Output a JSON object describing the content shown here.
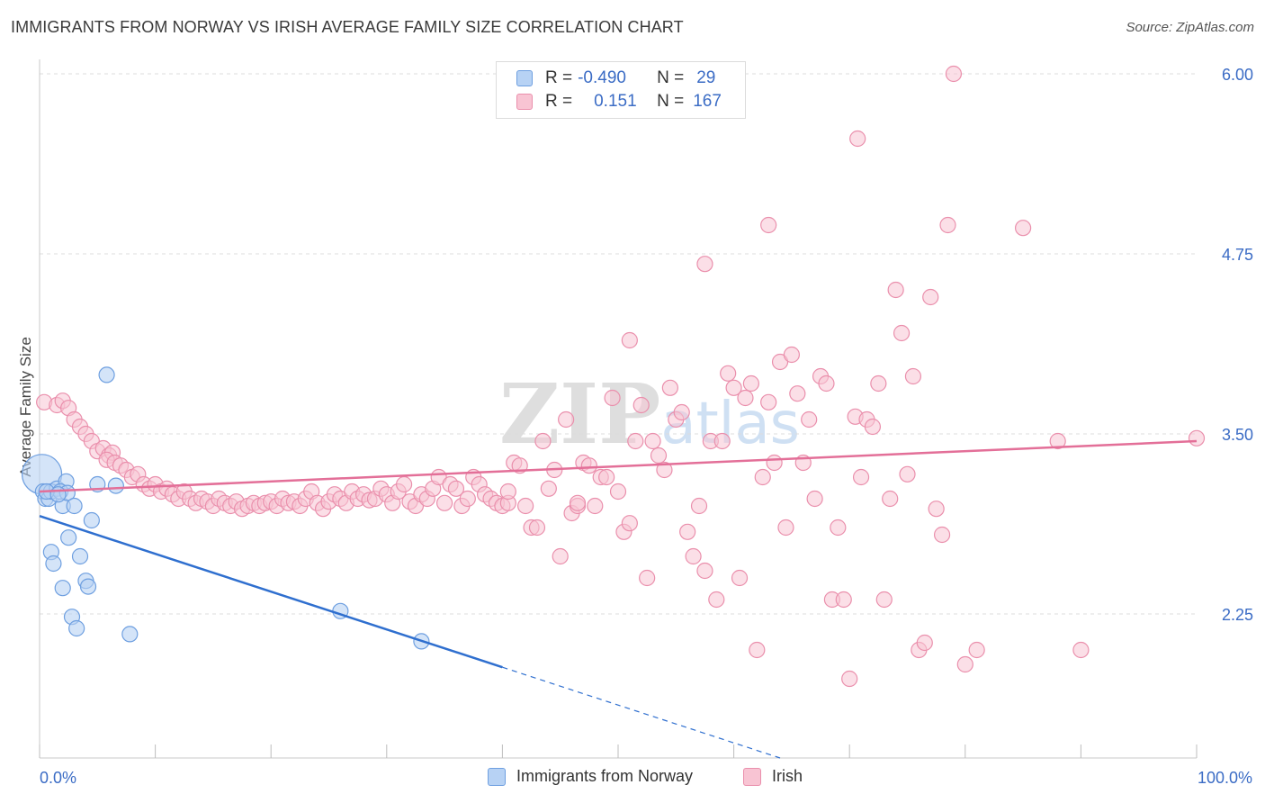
{
  "title": "IMMIGRANTS FROM NORWAY VS IRISH AVERAGE FAMILY SIZE CORRELATION CHART",
  "source": "Source: ZipAtlas.com",
  "watermark": "ZIPatlas",
  "legend_top": {
    "rows": [
      {
        "r_label": "R =",
        "r_value": "-0.490",
        "n_label": "N =",
        "n_value": "29"
      },
      {
        "r_label": "R =",
        "r_value": "0.151",
        "n_label": "N =",
        "n_value": "167"
      }
    ]
  },
  "colors": {
    "norway_fill": "#b7d2f4",
    "norway_stroke": "#6e9fe0",
    "norway_line": "#2f6fcf",
    "irish_fill": "#f8c4d3",
    "irish_stroke": "#ea8fac",
    "irish_line": "#e36f98",
    "axis_text": "#3b6cc5",
    "grid": "#dcdcdc"
  },
  "chart_data": {
    "type": "scatter",
    "title": "IMMIGRANTS FROM NORWAY VS IRISH AVERAGE FAMILY SIZE CORRELATION CHART",
    "ylabel": "Average Family Size",
    "xlabel": "",
    "xlim": [
      0,
      100
    ],
    "ylim": [
      1.25,
      6.1
    ],
    "x_tick_labels": [
      "0.0%",
      "100.0%"
    ],
    "y_ticks": [
      2.25,
      3.5,
      4.75,
      6.0
    ],
    "y_tick_labels": [
      "2.25",
      "3.50",
      "4.75",
      "6.00"
    ],
    "series": [
      {
        "name": "Immigrants from Norway",
        "r": -0.49,
        "n": 29,
        "trend": {
          "x0": 0,
          "y0": 2.93,
          "x_solid_end": 40,
          "x1": 64,
          "y1": 1.25
        },
        "points": [
          [
            0.2,
            3.22,
            "L"
          ],
          [
            0.3,
            3.1
          ],
          [
            0.5,
            3.05
          ],
          [
            0.8,
            3.05
          ],
          [
            1.0,
            3.1
          ],
          [
            1.5,
            3.12
          ],
          [
            2.0,
            3.0
          ],
          [
            2.3,
            3.17
          ],
          [
            1.8,
            3.1
          ],
          [
            2.4,
            3.09
          ],
          [
            3.0,
            3.0
          ],
          [
            4.5,
            2.9
          ],
          [
            2.5,
            2.78
          ],
          [
            1.0,
            2.68
          ],
          [
            3.5,
            2.65
          ],
          [
            1.2,
            2.6
          ],
          [
            4.0,
            2.48
          ],
          [
            4.2,
            2.44
          ],
          [
            2.0,
            2.43
          ],
          [
            2.8,
            2.23
          ],
          [
            3.2,
            2.15
          ],
          [
            7.8,
            2.11
          ],
          [
            5.8,
            3.91
          ],
          [
            5.0,
            3.15
          ],
          [
            6.6,
            3.14
          ],
          [
            26.0,
            2.27
          ],
          [
            33.0,
            2.06
          ],
          [
            0.6,
            3.1
          ],
          [
            1.6,
            3.08
          ]
        ]
      },
      {
        "name": "Irish",
        "r": 0.151,
        "n": 167,
        "trend": {
          "x0": 0,
          "y0": 3.1,
          "x1": 100,
          "y1": 3.45
        },
        "points": [
          [
            0.4,
            3.72
          ],
          [
            1.5,
            3.7
          ],
          [
            2.0,
            3.73
          ],
          [
            2.5,
            3.68
          ],
          [
            3.0,
            3.6
          ],
          [
            3.5,
            3.55
          ],
          [
            4.0,
            3.5
          ],
          [
            4.5,
            3.45
          ],
          [
            5.0,
            3.38
          ],
          [
            5.5,
            3.4
          ],
          [
            6.0,
            3.35
          ],
          [
            6.3,
            3.37
          ],
          [
            5.8,
            3.32
          ],
          [
            6.5,
            3.3
          ],
          [
            7.0,
            3.28
          ],
          [
            7.5,
            3.25
          ],
          [
            8.0,
            3.2
          ],
          [
            8.5,
            3.22
          ],
          [
            9.0,
            3.15
          ],
          [
            9.5,
            3.12
          ],
          [
            10.0,
            3.15
          ],
          [
            10.5,
            3.1
          ],
          [
            11.0,
            3.12
          ],
          [
            11.5,
            3.08
          ],
          [
            12.0,
            3.05
          ],
          [
            12.5,
            3.1
          ],
          [
            13.0,
            3.05
          ],
          [
            13.5,
            3.02
          ],
          [
            14.0,
            3.05
          ],
          [
            14.5,
            3.03
          ],
          [
            15.0,
            3.0
          ],
          [
            15.5,
            3.05
          ],
          [
            16.0,
            3.02
          ],
          [
            16.5,
            3.0
          ],
          [
            17.0,
            3.03
          ],
          [
            17.5,
            2.98
          ],
          [
            18.0,
            3.0
          ],
          [
            18.5,
            3.02
          ],
          [
            19.0,
            3.0
          ],
          [
            19.5,
            3.02
          ],
          [
            20.0,
            3.03
          ],
          [
            20.5,
            3.0
          ],
          [
            21.0,
            3.05
          ],
          [
            21.5,
            3.02
          ],
          [
            22.0,
            3.03
          ],
          [
            22.5,
            3.0
          ],
          [
            23.0,
            3.05
          ],
          [
            23.5,
            3.1
          ],
          [
            24.0,
            3.02
          ],
          [
            24.5,
            2.98
          ],
          [
            25.0,
            3.03
          ],
          [
            25.5,
            3.08
          ],
          [
            26.0,
            3.05
          ],
          [
            26.5,
            3.02
          ],
          [
            27.0,
            3.1
          ],
          [
            27.5,
            3.05
          ],
          [
            28.0,
            3.08
          ],
          [
            28.5,
            3.04
          ],
          [
            29.0,
            3.05
          ],
          [
            29.5,
            3.12
          ],
          [
            30.0,
            3.08
          ],
          [
            30.5,
            3.02
          ],
          [
            31.0,
            3.1
          ],
          [
            31.5,
            3.15
          ],
          [
            32.0,
            3.03
          ],
          [
            32.5,
            3.0
          ],
          [
            33.0,
            3.08
          ],
          [
            33.5,
            3.05
          ],
          [
            34.0,
            3.12
          ],
          [
            34.5,
            3.2
          ],
          [
            35.0,
            3.02
          ],
          [
            35.5,
            3.15
          ],
          [
            36.0,
            3.12
          ],
          [
            36.5,
            3.0
          ],
          [
            37.0,
            3.05
          ],
          [
            37.5,
            3.2
          ],
          [
            38.0,
            3.15
          ],
          [
            38.5,
            3.08
          ],
          [
            39.0,
            3.05
          ],
          [
            39.5,
            3.02
          ],
          [
            40.0,
            3.0
          ],
          [
            40.5,
            3.02
          ],
          [
            41.0,
            3.3
          ],
          [
            41.5,
            3.28
          ],
          [
            42.0,
            3.0
          ],
          [
            42.5,
            2.85
          ],
          [
            43.0,
            2.85
          ],
          [
            43.5,
            3.45
          ],
          [
            44.0,
            3.12
          ],
          [
            44.5,
            3.25
          ],
          [
            45.0,
            2.65
          ],
          [
            45.5,
            3.6
          ],
          [
            46.0,
            2.95
          ],
          [
            46.5,
            3.0
          ],
          [
            47.0,
            3.3
          ],
          [
            47.5,
            3.28
          ],
          [
            48.0,
            3.0
          ],
          [
            48.5,
            3.2
          ],
          [
            49.0,
            3.2
          ],
          [
            49.5,
            3.75
          ],
          [
            50.0,
            3.1
          ],
          [
            50.5,
            2.82
          ],
          [
            51.0,
            2.88
          ],
          [
            51.5,
            3.45
          ],
          [
            52.0,
            3.7
          ],
          [
            52.5,
            2.5
          ],
          [
            53.0,
            3.45
          ],
          [
            53.5,
            3.35
          ],
          [
            54.0,
            3.25
          ],
          [
            54.5,
            3.82
          ],
          [
            55.0,
            3.6
          ],
          [
            55.5,
            3.65
          ],
          [
            56.0,
            2.82
          ],
          [
            56.5,
            2.65
          ],
          [
            57.0,
            3.0
          ],
          [
            57.5,
            2.55
          ],
          [
            58.0,
            3.45
          ],
          [
            58.5,
            2.35
          ],
          [
            59.0,
            3.45
          ],
          [
            59.5,
            3.92
          ],
          [
            60.0,
            3.82
          ],
          [
            60.5,
            2.5
          ],
          [
            61.0,
            3.75
          ],
          [
            61.5,
            3.85
          ],
          [
            62.0,
            2.0
          ],
          [
            62.5,
            3.2
          ],
          [
            63.0,
            3.72
          ],
          [
            63.5,
            3.3
          ],
          [
            64.0,
            4.0
          ],
          [
            64.5,
            2.85
          ],
          [
            65.0,
            4.05
          ],
          [
            65.5,
            3.78
          ],
          [
            66.0,
            3.3
          ],
          [
            66.5,
            3.6
          ],
          [
            67.0,
            3.05
          ],
          [
            67.5,
            3.9
          ],
          [
            68.0,
            3.85
          ],
          [
            68.5,
            2.35
          ],
          [
            69.0,
            2.85
          ],
          [
            69.5,
            2.35
          ],
          [
            70.0,
            1.8
          ],
          [
            70.5,
            3.62
          ],
          [
            71.0,
            3.2
          ],
          [
            71.5,
            3.6
          ],
          [
            72.0,
            3.55
          ],
          [
            72.5,
            3.85
          ],
          [
            73.0,
            2.35
          ],
          [
            73.5,
            3.05
          ],
          [
            74.0,
            4.5
          ],
          [
            74.5,
            4.2
          ],
          [
            75.0,
            3.22
          ],
          [
            75.5,
            3.9
          ],
          [
            76.0,
            2.0
          ],
          [
            76.5,
            2.05
          ],
          [
            77.0,
            4.45
          ],
          [
            77.5,
            2.98
          ],
          [
            78.0,
            2.8
          ],
          [
            78.5,
            4.95
          ],
          [
            79.0,
            6.0
          ],
          [
            80.0,
            1.9
          ],
          [
            81.0,
            2.0
          ],
          [
            70.7,
            5.55
          ],
          [
            63.0,
            4.95
          ],
          [
            57.5,
            4.68
          ],
          [
            51.0,
            4.15
          ],
          [
            85.0,
            4.93
          ],
          [
            88.0,
            3.45
          ],
          [
            90.0,
            2.0
          ],
          [
            100.0,
            3.47
          ],
          [
            46.5,
            3.02
          ],
          [
            40.5,
            3.1
          ]
        ]
      }
    ]
  },
  "bottom_legend": [
    {
      "label": "Immigrants from Norway"
    },
    {
      "label": "Irish"
    }
  ]
}
